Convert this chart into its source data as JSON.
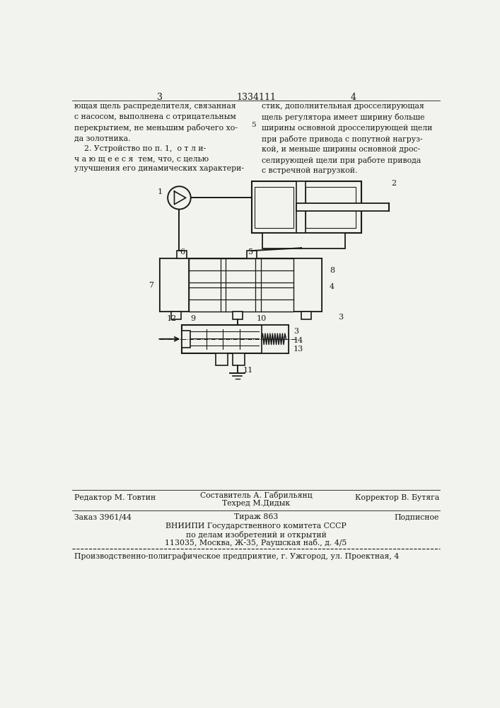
{
  "page_number_left": "3",
  "page_number_center": "1334111",
  "page_number_right": "4",
  "text_left": "ющая щель распределителя, связанная\nс насосом, выполнена с отрицательным\nперекрытием, не меньшим рабочего хо-\nда золотника.\n    2. Устройство по п. 1,  о т л и-\nч а ю щ е е с я  тем, что, с целью\nулучшения его динамических характери-",
  "text_right": "стик, дополнительная дросселирующая\nщель регулятора имеет ширину больше\nширины основной дросселирующей щели\nпри работе привода с попутной нагруз-\nкой, и меньше ширины основной дрос-\nселирующей щели при работе привода\nс встречной нагрузкой.",
  "line_number_5": "5",
  "footer_line1_left": "Редактор М. Товтин",
  "footer_line1_center": "Составитель А. Габрильянц",
  "footer_line1_right": "Корректор В. Бутяга",
  "footer_line2_center": "Техред М.Дидык",
  "footer_line3_left": "Заказ 3961/44",
  "footer_line3_center": "Тираж 863",
  "footer_line3_right": "Подписное",
  "footer_line4": "ВНИИПИ Государственного комитета СССР",
  "footer_line5": "по делам изобретений и открытий",
  "footer_line6": "113035, Москва, Ж-35, Раушская наб., д. 4/5",
  "footer_line7": "Производственно-полиграфическое предприятие, г. Ужгород, ул. Проектная, 4",
  "bg_color": "#f2f2ee",
  "text_color": "#1a1a1a",
  "diagram_color": "#1a1a1a"
}
